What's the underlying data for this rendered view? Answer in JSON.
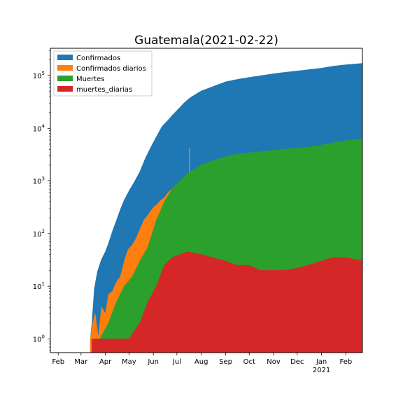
{
  "chart_data": {
    "type": "area",
    "title": "Guatemala(2021-02-22)",
    "yscale": "log",
    "ylim": [
      0.55,
      330000
    ],
    "xlim": [
      "2020-01-22",
      "2021-02-22"
    ],
    "x_ticks": [
      {
        "date": "2020-02-01",
        "label": "Feb",
        "sublabel": ""
      },
      {
        "date": "2020-03-01",
        "label": "Mar",
        "sublabel": ""
      },
      {
        "date": "2020-04-01",
        "label": "Apr",
        "sublabel": ""
      },
      {
        "date": "2020-05-01",
        "label": "May",
        "sublabel": ""
      },
      {
        "date": "2020-06-01",
        "label": "Jun",
        "sublabel": ""
      },
      {
        "date": "2020-07-01",
        "label": "Jul",
        "sublabel": ""
      },
      {
        "date": "2020-08-01",
        "label": "Aug",
        "sublabel": ""
      },
      {
        "date": "2020-09-01",
        "label": "Sep",
        "sublabel": ""
      },
      {
        "date": "2020-10-01",
        "label": "Oct",
        "sublabel": ""
      },
      {
        "date": "2020-11-01",
        "label": "Nov",
        "sublabel": ""
      },
      {
        "date": "2020-12-01",
        "label": "Dec",
        "sublabel": ""
      },
      {
        "date": "2021-01-01",
        "label": "Jan",
        "sublabel": "2021"
      },
      {
        "date": "2021-02-01",
        "label": "Feb",
        "sublabel": ""
      }
    ],
    "y_ticks": [
      {
        "value": 1,
        "base": "10",
        "exp": "0"
      },
      {
        "value": 10,
        "base": "10",
        "exp": "1"
      },
      {
        "value": 100,
        "base": "10",
        "exp": "2"
      },
      {
        "value": 1000,
        "base": "10",
        "exp": "3"
      },
      {
        "value": 10000,
        "base": "10",
        "exp": "4"
      },
      {
        "value": 100000,
        "base": "10",
        "exp": "5"
      }
    ],
    "legend": {
      "position": "top-left"
    },
    "series": [
      {
        "name": "Confirmados",
        "color": "#1f77b4",
        "kind": "area",
        "points": [
          [
            "2020-03-13",
            1
          ],
          [
            "2020-03-15",
            2
          ],
          [
            "2020-03-18",
            9
          ],
          [
            "2020-03-22",
            19
          ],
          [
            "2020-03-27",
            32
          ],
          [
            "2020-04-01",
            45
          ],
          [
            "2020-04-05",
            65
          ],
          [
            "2020-04-10",
            110
          ],
          [
            "2020-04-15",
            175
          ],
          [
            "2020-04-20",
            285
          ],
          [
            "2020-04-25",
            430
          ],
          [
            "2020-05-01",
            640
          ],
          [
            "2020-05-08",
            960
          ],
          [
            "2020-05-15",
            1500
          ],
          [
            "2020-05-22",
            2700
          ],
          [
            "2020-05-29",
            4400
          ],
          [
            "2020-06-05",
            6900
          ],
          [
            "2020-06-12",
            10700
          ],
          [
            "2020-06-19",
            13800
          ],
          [
            "2020-06-26",
            18100
          ],
          [
            "2020-07-03",
            23200
          ],
          [
            "2020-07-10",
            30000
          ],
          [
            "2020-07-17",
            37000
          ],
          [
            "2020-07-24",
            43200
          ],
          [
            "2020-08-01",
            51000
          ],
          [
            "2020-08-15",
            61000
          ],
          [
            "2020-09-01",
            76000
          ],
          [
            "2020-09-15",
            84000
          ],
          [
            "2020-10-01",
            92000
          ],
          [
            "2020-10-15",
            99000
          ],
          [
            "2020-11-01",
            108000
          ],
          [
            "2020-11-15",
            115000
          ],
          [
            "2020-12-01",
            122000
          ],
          [
            "2020-12-15",
            129000
          ],
          [
            "2021-01-01",
            138000
          ],
          [
            "2021-01-15",
            150000
          ],
          [
            "2021-02-01",
            160000
          ],
          [
            "2021-02-22",
            170000
          ]
        ]
      },
      {
        "name": "Confirmados diarios",
        "color": "#ff7f0e",
        "kind": "area",
        "points": [
          [
            "2020-03-13",
            1
          ],
          [
            "2020-03-16",
            2
          ],
          [
            "2020-03-19",
            3
          ],
          [
            "2020-03-23",
            1
          ],
          [
            "2020-03-27",
            4
          ],
          [
            "2020-04-01",
            3
          ],
          [
            "2020-04-05",
            7
          ],
          [
            "2020-04-10",
            8
          ],
          [
            "2020-04-15",
            12
          ],
          [
            "2020-04-20",
            15
          ],
          [
            "2020-04-25",
            30
          ],
          [
            "2020-04-30",
            50
          ],
          [
            "2020-05-05",
            60
          ],
          [
            "2020-05-10",
            80
          ],
          [
            "2020-05-15",
            120
          ],
          [
            "2020-05-20",
            180
          ],
          [
            "2020-05-25",
            220
          ],
          [
            "2020-05-31",
            300
          ],
          [
            "2020-06-05",
            350
          ],
          [
            "2020-06-10",
            420
          ],
          [
            "2020-06-15",
            480
          ],
          [
            "2020-06-20",
            600
          ],
          [
            "2020-06-25",
            700
          ],
          [
            "2020-07-01",
            800
          ],
          [
            "2020-07-07",
            900
          ],
          [
            "2020-07-15",
            1000
          ],
          [
            "2020-07-25",
            900
          ],
          [
            "2020-08-05",
            800
          ],
          [
            "2020-08-20",
            700
          ],
          [
            "2020-09-05",
            600
          ],
          [
            "2020-09-20",
            500
          ],
          [
            "2020-10-05",
            550
          ],
          [
            "2020-10-20",
            600
          ],
          [
            "2020-11-05",
            500
          ],
          [
            "2020-11-20",
            550
          ],
          [
            "2020-12-05",
            500
          ],
          [
            "2020-12-20",
            550
          ],
          [
            "2021-01-05",
            700
          ],
          [
            "2021-01-20",
            800
          ],
          [
            "2021-02-05",
            750
          ],
          [
            "2021-02-22",
            600
          ]
        ],
        "spikes": [
          [
            "2020-07-17",
            4200
          ]
        ]
      },
      {
        "name": "Muertes",
        "color": "#2ca02c",
        "kind": "area",
        "points": [
          [
            "2020-03-15",
            1
          ],
          [
            "2020-03-25",
            1
          ],
          [
            "2020-04-05",
            2
          ],
          [
            "2020-04-15",
            5
          ],
          [
            "2020-04-25",
            10
          ],
          [
            "2020-05-05",
            15
          ],
          [
            "2020-05-15",
            30
          ],
          [
            "2020-05-25",
            55
          ],
          [
            "2020-06-05",
            180
          ],
          [
            "2020-06-15",
            400
          ],
          [
            "2020-06-25",
            700
          ],
          [
            "2020-07-05",
            1000
          ],
          [
            "2020-07-15",
            1400
          ],
          [
            "2020-07-25",
            1700
          ],
          [
            "2020-08-01",
            2000
          ],
          [
            "2020-08-15",
            2400
          ],
          [
            "2020-09-01",
            2900
          ],
          [
            "2020-09-15",
            3200
          ],
          [
            "2020-10-01",
            3400
          ],
          [
            "2020-10-15",
            3600
          ],
          [
            "2020-11-01",
            3800
          ],
          [
            "2020-11-15",
            4000
          ],
          [
            "2020-12-01",
            4200
          ],
          [
            "2020-12-15",
            4400
          ],
          [
            "2021-01-01",
            4800
          ],
          [
            "2021-01-15",
            5300
          ],
          [
            "2021-02-01",
            5800
          ],
          [
            "2021-02-22",
            6300
          ]
        ]
      },
      {
        "name": "muertes_diarias",
        "color": "#d62728",
        "kind": "area",
        "points": [
          [
            "2020-03-15",
            1
          ],
          [
            "2020-04-01",
            1
          ],
          [
            "2020-04-15",
            1
          ],
          [
            "2020-05-01",
            1
          ],
          [
            "2020-05-15",
            2
          ],
          [
            "2020-05-25",
            5
          ],
          [
            "2020-06-05",
            10
          ],
          [
            "2020-06-15",
            25
          ],
          [
            "2020-06-25",
            35
          ],
          [
            "2020-07-05",
            40
          ],
          [
            "2020-07-15",
            45
          ],
          [
            "2020-08-01",
            40
          ],
          [
            "2020-08-15",
            35
          ],
          [
            "2020-09-01",
            30
          ],
          [
            "2020-09-15",
            25
          ],
          [
            "2020-10-01",
            25
          ],
          [
            "2020-10-15",
            20
          ],
          [
            "2020-11-01",
            20
          ],
          [
            "2020-11-15",
            20
          ],
          [
            "2020-12-01",
            22
          ],
          [
            "2020-12-15",
            25
          ],
          [
            "2021-01-01",
            30
          ],
          [
            "2021-01-15",
            35
          ],
          [
            "2021-02-01",
            35
          ],
          [
            "2021-02-22",
            30
          ]
        ]
      }
    ]
  }
}
